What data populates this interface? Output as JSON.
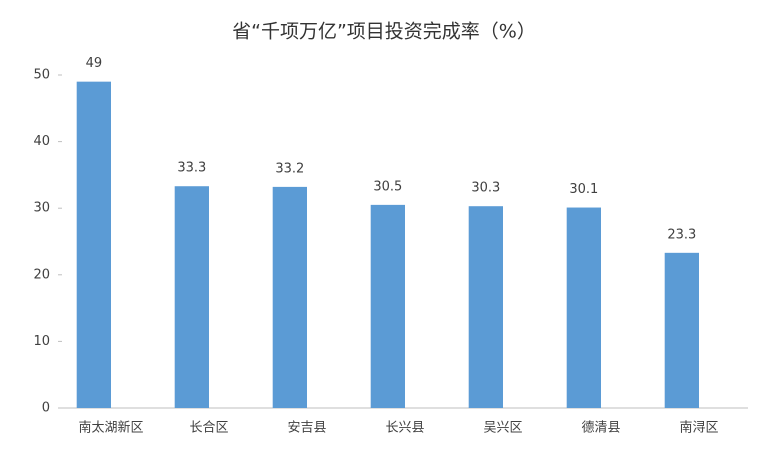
{
  "chart_data": {
    "type": "bar",
    "title": "省“千项万亿”项目投资完成率（%）",
    "categories": [
      "南太湖新区",
      "长合区",
      "安吉县",
      "长兴县",
      "吴兴区",
      "德清县",
      "南浔区"
    ],
    "values": [
      49,
      33.3,
      33.2,
      30.5,
      30.3,
      30.1,
      23.3
    ],
    "color": "#5b9bd5",
    "ylim": [
      0,
      50
    ],
    "yticks": [
      0,
      10,
      20,
      30,
      40,
      50
    ],
    "grid": false
  }
}
